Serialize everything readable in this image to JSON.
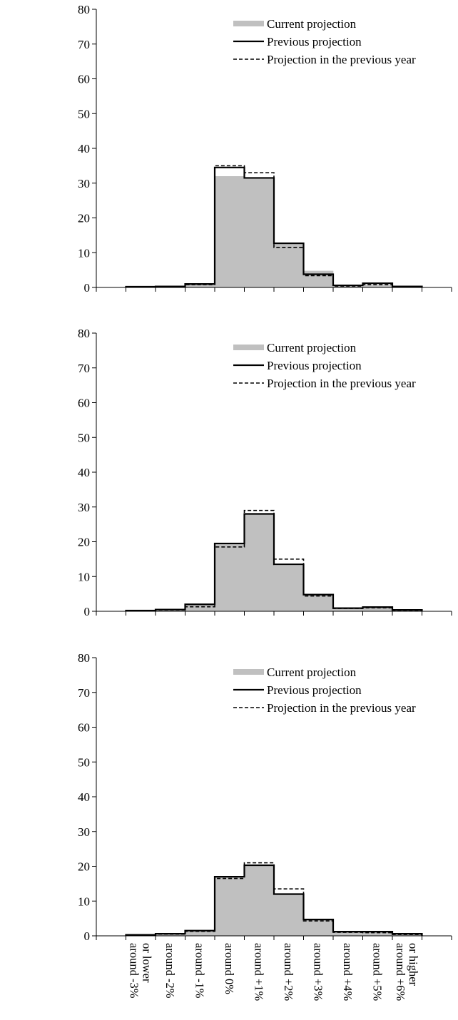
{
  "chart_data": [
    {
      "type": "bar",
      "ylim": [
        0,
        80
      ],
      "yticks": [
        0,
        10,
        20,
        30,
        40,
        50,
        60,
        70,
        80
      ],
      "grid": false,
      "legend_position": "top-right",
      "categories": [
        "around -3%\nor lower",
        "around -2%",
        "around -1%",
        "around 0%",
        "around +1%",
        "around +2%",
        "around +3%",
        "around +4%",
        "around +5%",
        "around +6%\nor higher"
      ],
      "series": [
        {
          "name": "Current projection",
          "style": "gray-fill",
          "values": [
            0.2,
            0.3,
            0.9,
            32.0,
            31.4,
            12.4,
            4.8,
            0.6,
            0.7,
            0.2
          ]
        },
        {
          "name": "Previous projection",
          "style": "solid-line",
          "values": [
            0.2,
            0.3,
            1.0,
            34.5,
            31.5,
            12.7,
            3.8,
            0.6,
            1.2,
            0.3
          ]
        },
        {
          "name": "Projection in the previous year",
          "style": "dashed-line",
          "values": [
            0.1,
            0.2,
            0.8,
            35.0,
            33.0,
            11.5,
            3.4,
            0.4,
            0.8,
            0.2
          ]
        }
      ]
    },
    {
      "type": "bar",
      "ylim": [
        0,
        80
      ],
      "yticks": [
        0,
        10,
        20,
        30,
        40,
        50,
        60,
        70,
        80
      ],
      "grid": false,
      "legend_position": "top-right",
      "categories": [
        "around -3%\nor lower",
        "around -2%",
        "around -1%",
        "around 0%",
        "around +1%",
        "around +2%",
        "around +3%",
        "around +4%",
        "around +5%",
        "around +6%\nor higher"
      ],
      "series": [
        {
          "name": "Current projection",
          "style": "gray-fill",
          "values": [
            0.2,
            0.5,
            1.8,
            19.5,
            28.0,
            13.2,
            4.9,
            1.0,
            1.0,
            0.4
          ]
        },
        {
          "name": "Previous projection",
          "style": "solid-line",
          "values": [
            0.2,
            0.5,
            2.0,
            19.5,
            28.0,
            13.5,
            4.8,
            0.9,
            1.2,
            0.4
          ]
        },
        {
          "name": "Projection in the previous year",
          "style": "dashed-line",
          "values": [
            0.1,
            0.4,
            1.3,
            18.5,
            29.0,
            15.0,
            4.4,
            0.8,
            1.0,
            0.3
          ]
        }
      ]
    },
    {
      "type": "bar",
      "ylim": [
        0,
        80
      ],
      "yticks": [
        0,
        10,
        20,
        30,
        40,
        50,
        60,
        70,
        80
      ],
      "grid": false,
      "legend_position": "top-right",
      "categories": [
        "around -3%\nor lower",
        "around -2%",
        "around -1%",
        "around 0%",
        "around +1%",
        "around +2%",
        "around +3%",
        "around +4%",
        "around +5%",
        "around +6%\nor higher"
      ],
      "series": [
        {
          "name": "Current projection",
          "style": "gray-fill",
          "values": [
            0.3,
            0.6,
            1.6,
            17.0,
            20.5,
            12.0,
            4.8,
            1.1,
            1.0,
            0.5
          ]
        },
        {
          "name": "Previous projection",
          "style": "solid-line",
          "values": [
            0.3,
            0.6,
            1.5,
            17.0,
            20.3,
            12.0,
            4.7,
            1.2,
            1.2,
            0.6
          ]
        },
        {
          "name": "Projection in the previous year",
          "style": "dashed-line",
          "values": [
            0.2,
            0.5,
            1.3,
            16.5,
            21.0,
            13.5,
            4.3,
            1.0,
            0.9,
            0.4
          ]
        }
      ]
    }
  ],
  "colors": {
    "fill": "#c0c0c0",
    "line": "#000000",
    "background": "#ffffff"
  }
}
